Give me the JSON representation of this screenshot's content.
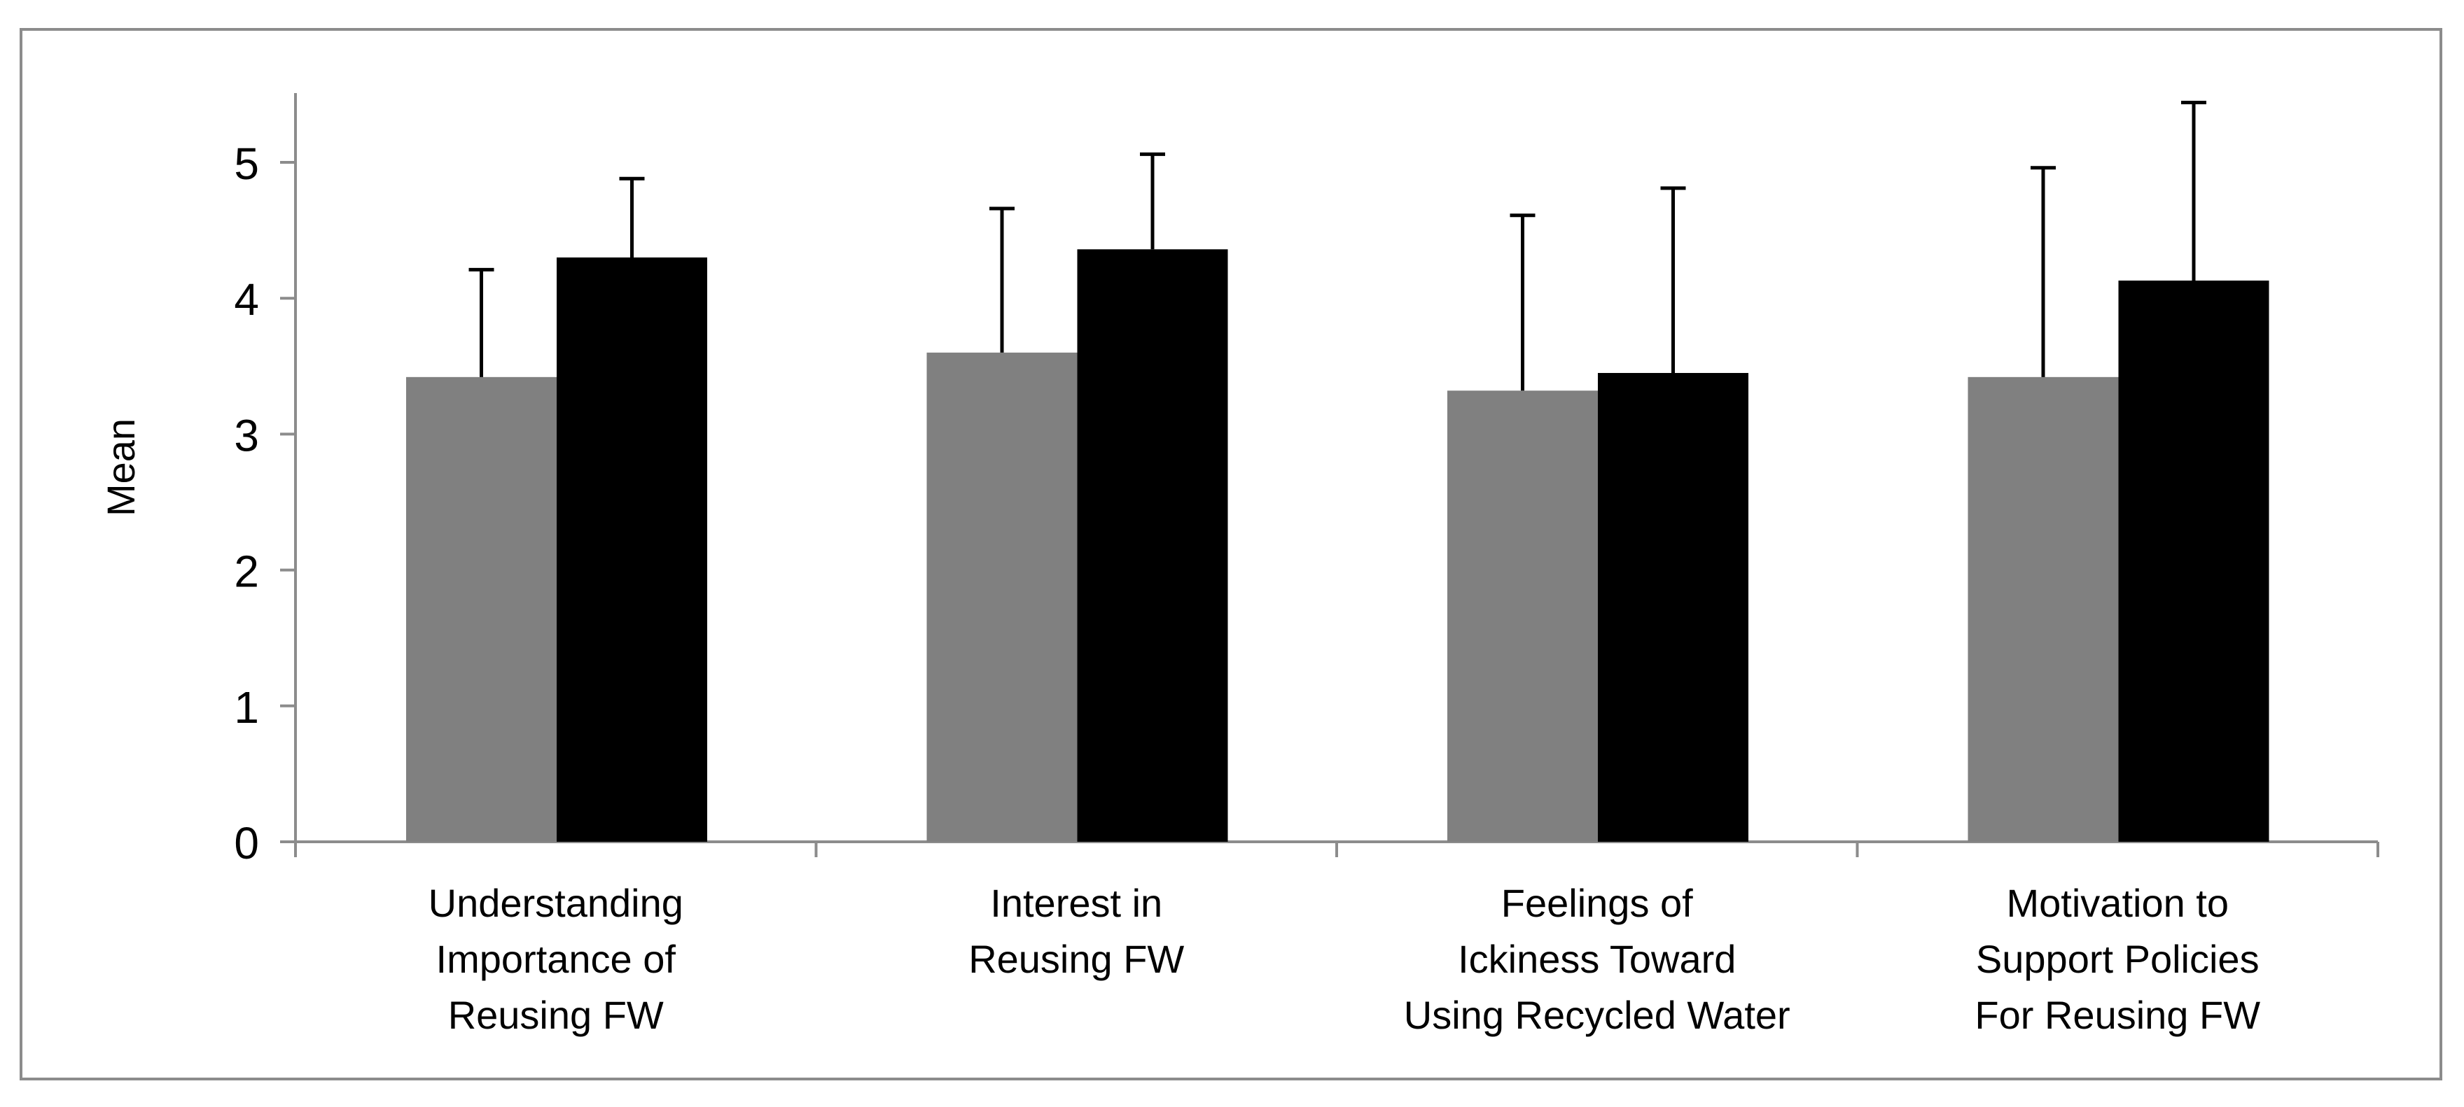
{
  "chart_data": {
    "type": "bar",
    "title": "",
    "xlabel": "",
    "ylabel": "Mean",
    "ylim": [
      0,
      5.5
    ],
    "yticks": [
      0,
      1,
      2,
      3,
      4,
      5
    ],
    "categories": [
      [
        "Understanding",
        "Importance of",
        "Reusing FW"
      ],
      [
        "Interest in",
        "Reusing FW"
      ],
      [
        "Feelings of",
        "Ickiness Toward",
        "Using Recycled Water"
      ],
      [
        "Motivation to",
        "Support Policies",
        "For Reusing FW"
      ]
    ],
    "series": [
      {
        "name": "",
        "color": "#808080",
        "values": [
          3.42,
          3.6,
          3.32,
          3.42
        ],
        "error_upper": [
          0.79,
          1.06,
          1.29,
          1.54
        ]
      },
      {
        "name": "",
        "color": "#000000",
        "values": [
          4.3,
          4.36,
          3.45,
          4.13
        ],
        "error_upper": [
          0.58,
          0.7,
          1.36,
          1.31
        ]
      }
    ],
    "grid": false,
    "legend": "none"
  }
}
